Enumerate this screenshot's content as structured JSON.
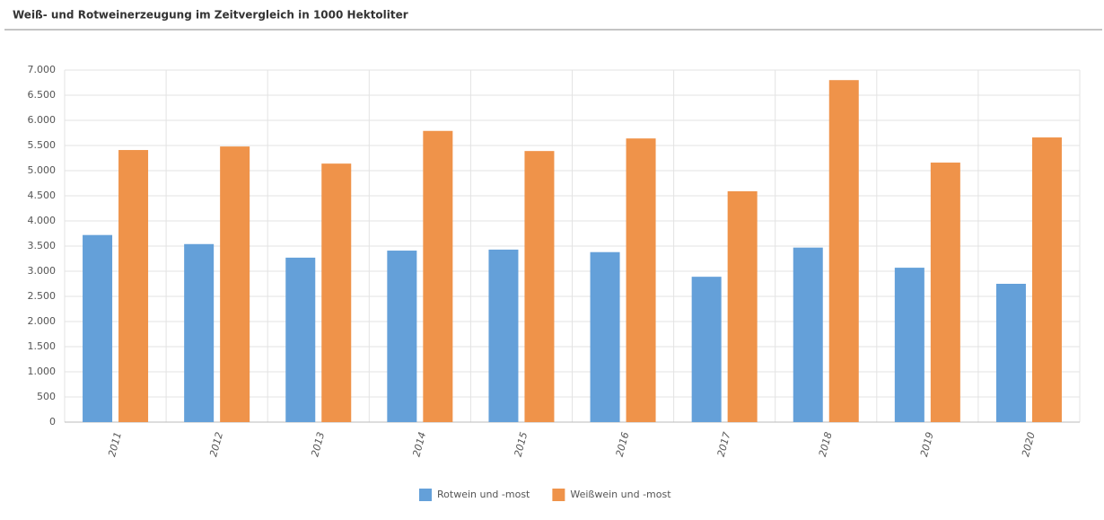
{
  "chart_data": {
    "type": "bar",
    "title": "Weiß- und Rotweinerzeugung im Zeitvergleich in 1000 Hektoliter",
    "categories": [
      "2011",
      "2012",
      "2013",
      "2014",
      "2015",
      "2016",
      "2017",
      "2018",
      "2019",
      "2020"
    ],
    "series": [
      {
        "name": "Rotwein und -most",
        "color": "#64a0d9",
        "values": [
          3720,
          3540,
          3270,
          3410,
          3430,
          3380,
          2890,
          3470,
          3070,
          2750
        ]
      },
      {
        "name": "Weißwein und -most",
        "color": "#ef934a",
        "values": [
          5410,
          5480,
          5140,
          5790,
          5390,
          5640,
          4590,
          6800,
          5160,
          5660
        ]
      }
    ],
    "ylim": [
      0,
      7000
    ],
    "yticks": [
      0,
      500,
      {
        "value": 1000,
        "label": "1.000"
      },
      {
        "value": 1500,
        "label": "1.500"
      },
      {
        "value": 2000,
        "label": "2.000"
      },
      {
        "value": 2500,
        "label": "2.500"
      },
      {
        "value": 3000,
        "label": "3.000"
      },
      {
        "value": 3500,
        "label": "3.500"
      },
      {
        "value": 4000,
        "label": "4.000"
      },
      {
        "value": 4500,
        "label": "4.500"
      },
      {
        "value": 5000,
        "label": "5.000"
      },
      {
        "value": 5500,
        "label": "5.500"
      },
      {
        "value": 6000,
        "label": "6.000"
      },
      {
        "value": 6500,
        "label": "6.500"
      },
      {
        "value": 7000,
        "label": "7.000"
      }
    ],
    "grid": true,
    "legend": "bottom"
  }
}
